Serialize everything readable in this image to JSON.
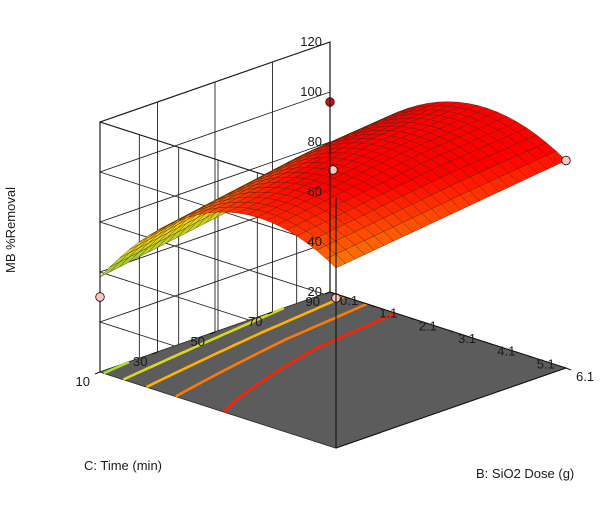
{
  "chart_data": {
    "type": "surface3d",
    "zlabel": "MB %Removal",
    "xlabel": "B: SiO2 Dose (g)",
    "ylabel": "C: Time (min)",
    "z_ticks": [
      "20",
      "40",
      "60",
      "80",
      "100",
      "120"
    ],
    "x_ticks": [
      "0.1",
      "1.1",
      "2.1",
      "3.1",
      "4.1",
      "5.1",
      "6.1"
    ],
    "y_ticks": [
      "10",
      "30",
      "50",
      "70",
      "90"
    ],
    "zlim": [
      20,
      120
    ],
    "xlim": [
      0.1,
      6.1
    ],
    "ylim": [
      10,
      90
    ],
    "surface": {
      "x_range": [
        0.1,
        6.1
      ],
      "y_range": [
        10,
        90
      ],
      "z_at_corners": {
        "dose_0.1_time_10": 58,
        "dose_0.1_time_90": 73,
        "dose_6.1_time_10": 92,
        "dose_6.1_time_90": 103
      },
      "z_max_approx": 108,
      "color_scale": [
        "#9acd32",
        "#ffd700",
        "#ff8c00",
        "#ff0000"
      ]
    },
    "design_points": [
      {
        "dose": 3.1,
        "time": 50,
        "removal": 100
      },
      {
        "dose": 6.1,
        "time": 90,
        "removal": 103
      },
      {
        "dose": 0.1,
        "time": 90,
        "removal": 96
      },
      {
        "dose": 6.1,
        "time": 10,
        "removal": 80
      },
      {
        "dose": 0.1,
        "time": 10,
        "removal": 50
      }
    ],
    "floor_contours": [
      {
        "removal": 60,
        "color": "#aadd33"
      },
      {
        "removal": 70,
        "color": "#d8d81e"
      },
      {
        "removal": 80,
        "color": "#ffb300"
      },
      {
        "removal": 90,
        "color": "#ff7a00"
      },
      {
        "removal": 100,
        "color": "#ff2200"
      }
    ],
    "grid": true,
    "legend": "none"
  }
}
